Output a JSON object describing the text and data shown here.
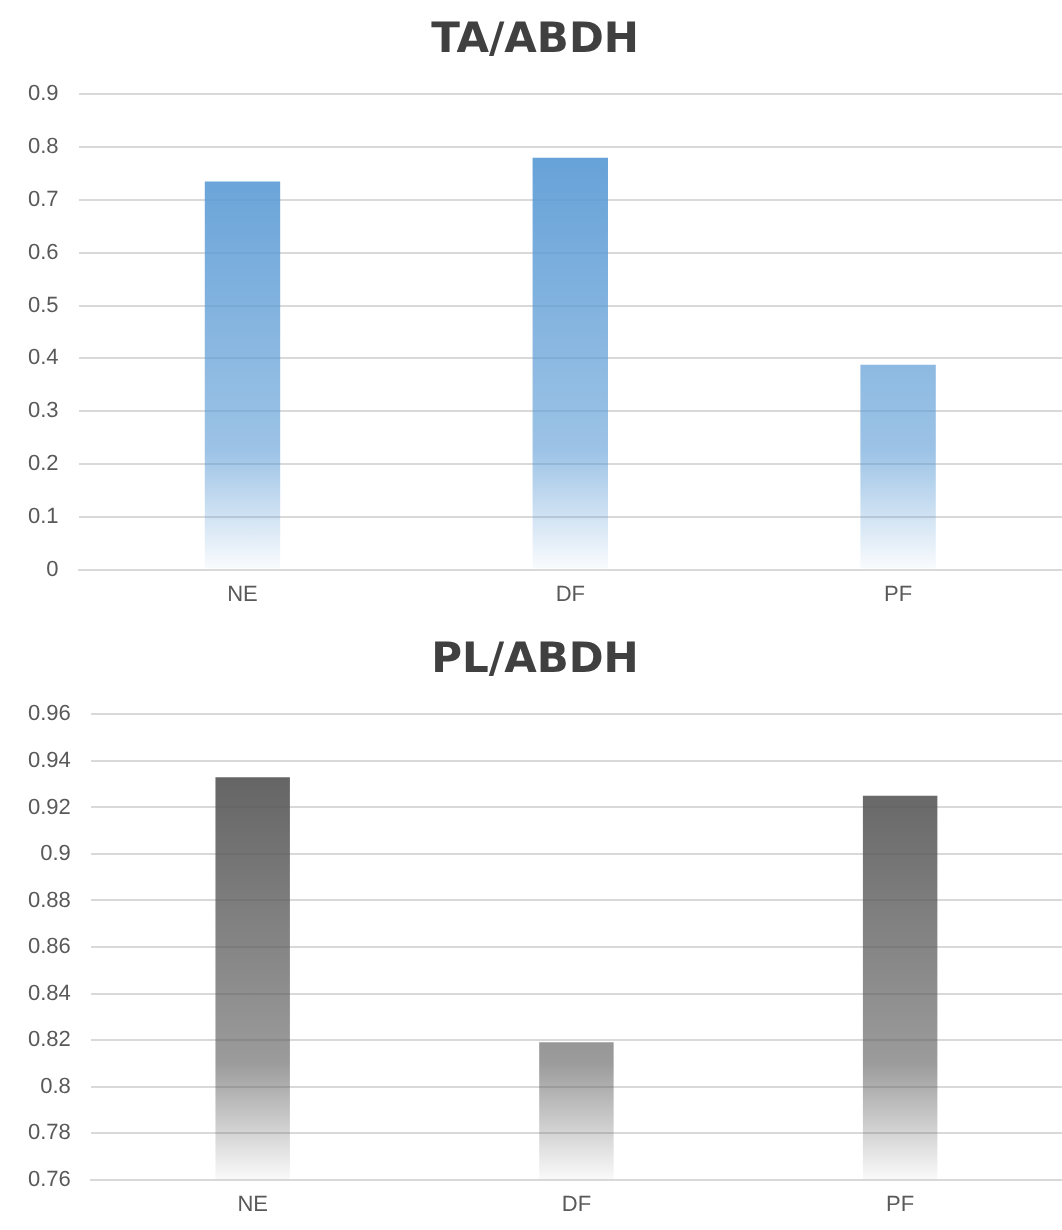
{
  "chart_data": [
    {
      "type": "bar",
      "title": "TA/ABDH",
      "categories": [
        "NE",
        "DF",
        "PF"
      ],
      "values": [
        0.735,
        0.78,
        0.388
      ],
      "color": "#5b9bd5",
      "ylim": [
        0,
        0.9
      ],
      "yticks": [
        0,
        0.1,
        0.2,
        0.3,
        0.4,
        0.5,
        0.6,
        0.7,
        0.8,
        0.9
      ],
      "grid": "y"
    },
    {
      "type": "bar",
      "title": "PL/ABDH",
      "categories": [
        "NE",
        "DF",
        "PF"
      ],
      "values": [
        0.933,
        0.819,
        0.925
      ],
      "color": "#595959",
      "ylim": [
        0.76,
        0.96
      ],
      "yticks": [
        0.76,
        0.78,
        0.8,
        0.82,
        0.84,
        0.86,
        0.88,
        0.9,
        0.92,
        0.94,
        0.96
      ],
      "grid": "y"
    }
  ]
}
